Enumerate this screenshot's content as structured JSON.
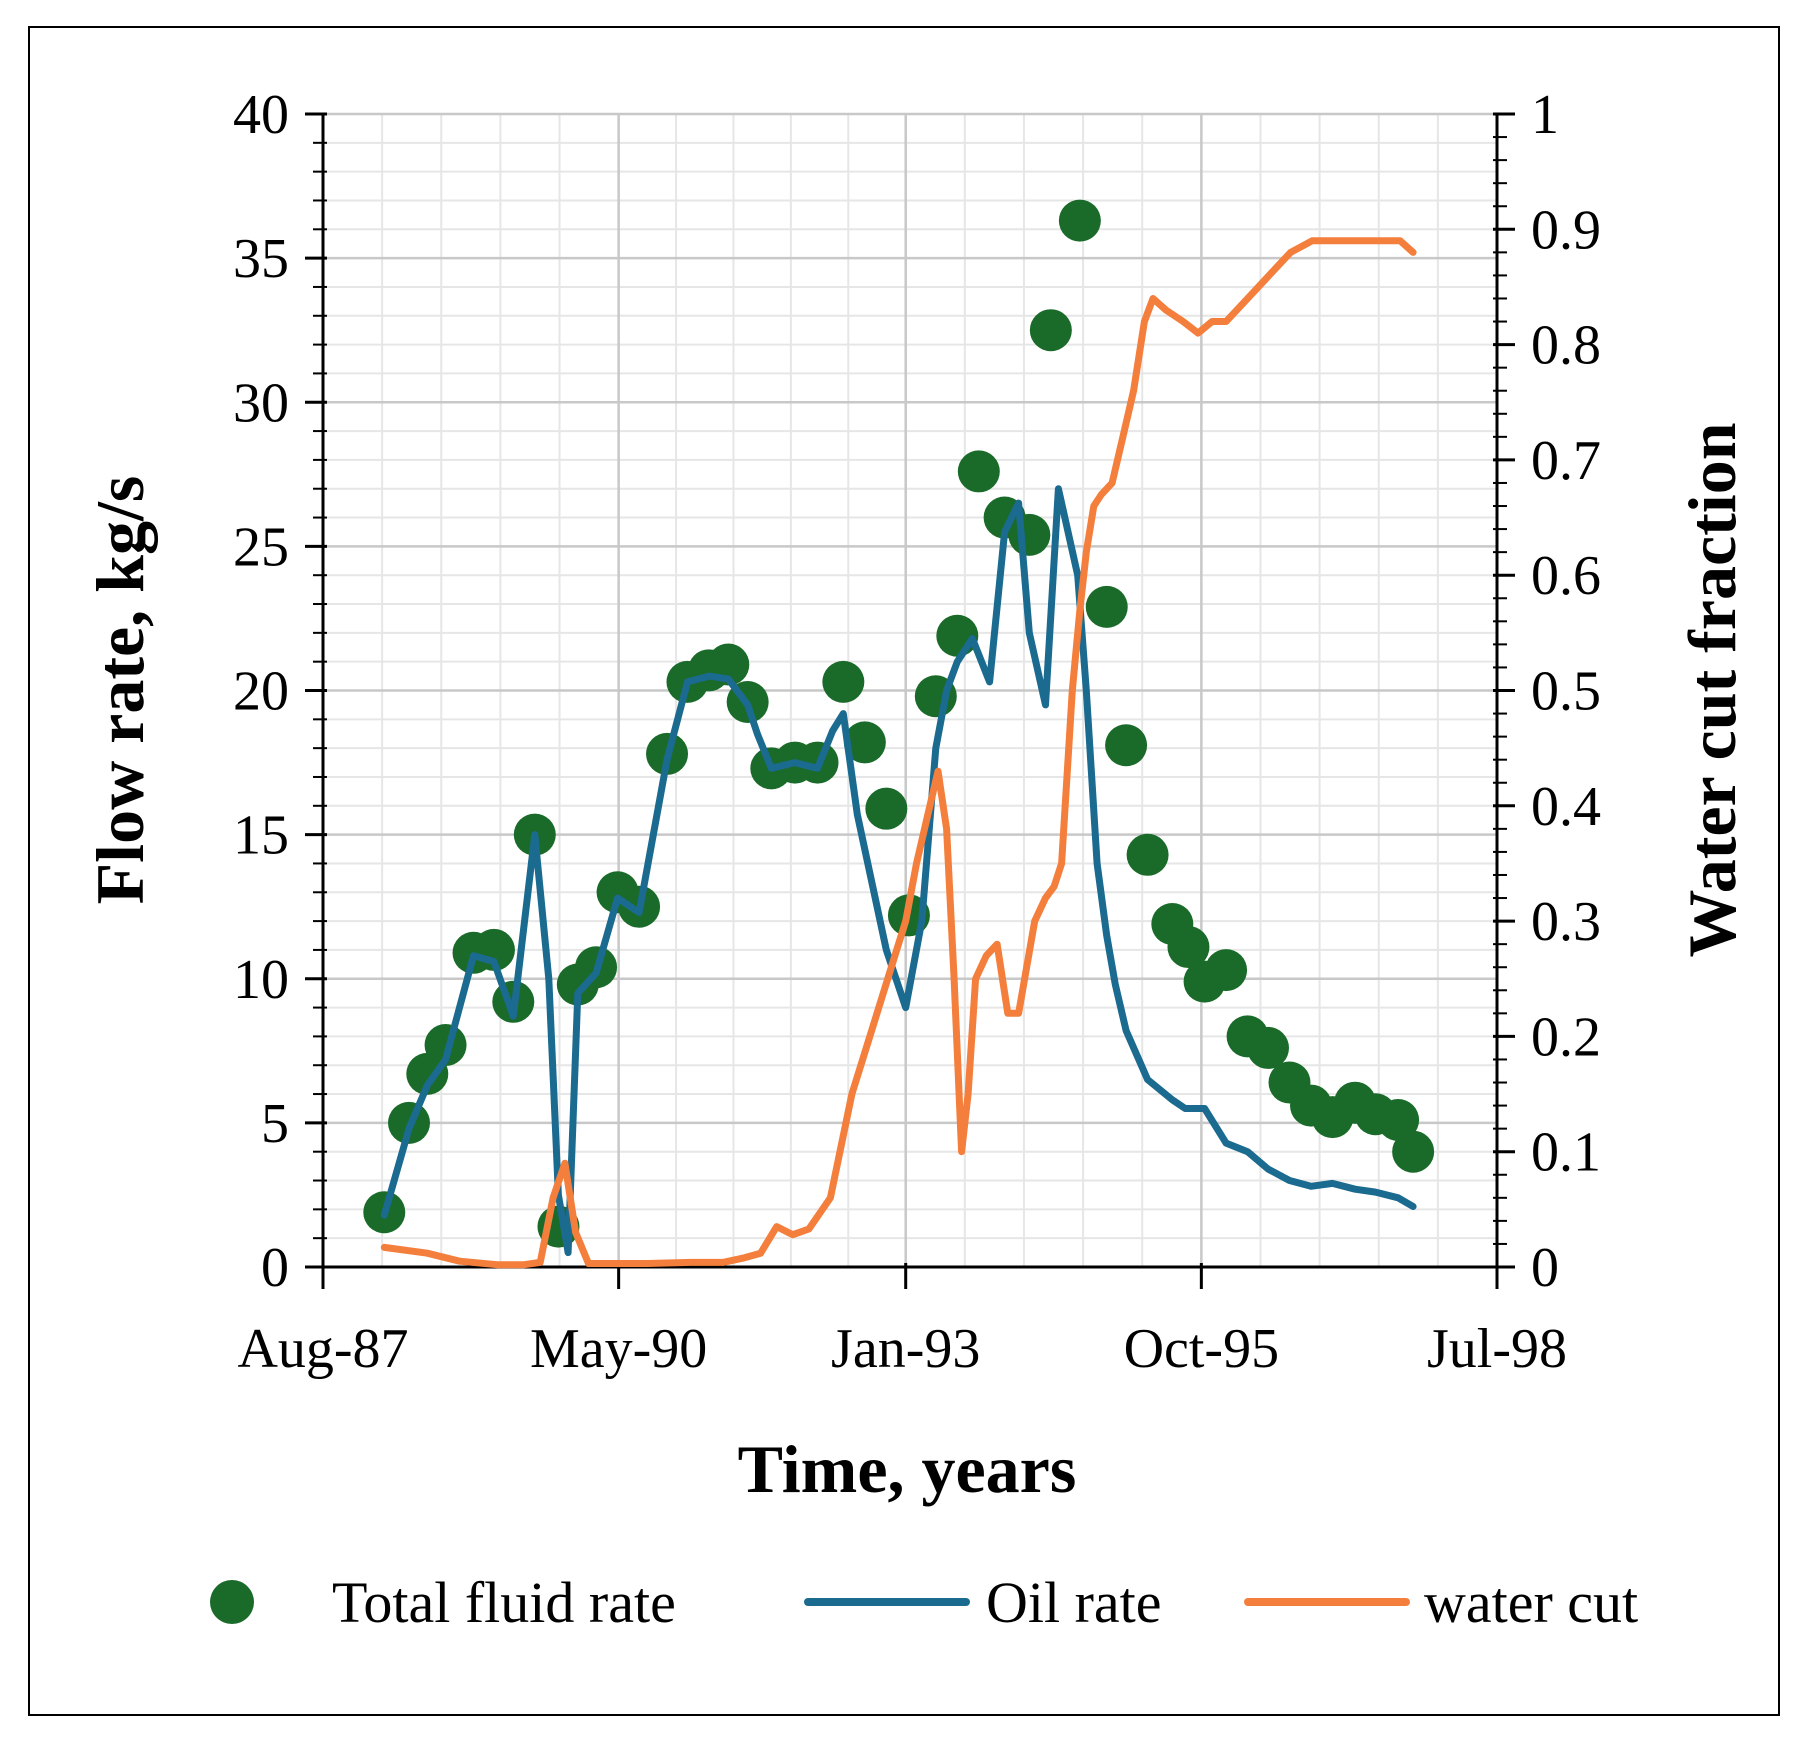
{
  "chart_data": {
    "type": "line",
    "title": "",
    "xlabel": "Time, years",
    "ylabel": "Flow rate, kg/s",
    "y2label": "Water cut fraction",
    "x_ticks": [
      "Aug-87",
      "May-90",
      "Jan-93",
      "Oct-95",
      "Jul-98"
    ],
    "x_tick_years": [
      1987.58,
      1990.33,
      1993.0,
      1995.75,
      1998.5
    ],
    "xlim": [
      1987.58,
      1998.5
    ],
    "ylim": [
      0,
      40
    ],
    "y_ticks": [
      0,
      5,
      10,
      15,
      20,
      25,
      30,
      35,
      40
    ],
    "y2lim": [
      0,
      1
    ],
    "y2_ticks": [
      "0",
      "0.1",
      "0.2",
      "0.3",
      "0.4",
      "0.5",
      "0.6",
      "0.7",
      "0.8",
      "0.9",
      "1"
    ],
    "grid": true,
    "legend_position": "bottom",
    "colors": {
      "total": "#1a6b2a",
      "oil": "#1b6a8f",
      "water": "#f47e3c",
      "grid_major": "#c8c8c8",
      "grid_minor": "#e6e6e6"
    },
    "series": [
      {
        "name": "Total fluid rate",
        "kind": "scatter",
        "axis": "left",
        "x": [
          1988.15,
          1988.38,
          1988.55,
          1988.72,
          1988.98,
          1989.17,
          1989.35,
          1989.55,
          1989.77,
          1989.95,
          1990.12,
          1990.32,
          1990.52,
          1990.78,
          1990.97,
          1991.17,
          1991.35,
          1991.53,
          1991.75,
          1991.97,
          1992.18,
          1992.42,
          1992.62,
          1992.82,
          1993.03,
          1993.28,
          1993.48,
          1993.68,
          1993.92,
          1994.15,
          1994.35,
          1994.62,
          1994.87,
          1995.05,
          1995.25,
          1995.48,
          1995.63,
          1995.78,
          1995.98,
          1996.18,
          1996.37,
          1996.57,
          1996.77,
          1996.97,
          1997.18,
          1997.37,
          1997.58,
          1997.72
        ],
        "y": [
          1.9,
          5.0,
          6.7,
          7.7,
          10.9,
          11.0,
          9.2,
          15.0,
          1.4,
          9.8,
          10.4,
          13.0,
          12.5,
          17.8,
          20.3,
          20.7,
          20.9,
          19.6,
          17.3,
          17.5,
          17.5,
          20.3,
          18.2,
          15.9,
          12.2,
          19.8,
          21.9,
          27.6,
          26.0,
          25.4,
          32.5,
          36.3,
          22.9,
          18.1,
          14.3,
          11.9,
          11.1,
          9.9,
          10.3,
          8.0,
          7.6,
          6.4,
          5.6,
          5.2,
          5.7,
          5.3,
          5.1,
          4.0
        ]
      },
      {
        "name": "Oil rate",
        "kind": "line",
        "axis": "left",
        "x": [
          1988.15,
          1988.38,
          1988.55,
          1988.72,
          1988.85,
          1988.98,
          1989.17,
          1989.35,
          1989.55,
          1989.68,
          1989.77,
          1989.86,
          1989.95,
          1990.12,
          1990.32,
          1990.52,
          1990.78,
          1990.97,
          1991.17,
          1991.35,
          1991.53,
          1991.62,
          1991.75,
          1991.97,
          1992.18,
          1992.32,
          1992.42,
          1992.55,
          1992.82,
          1993.0,
          1993.15,
          1993.28,
          1993.38,
          1993.48,
          1993.62,
          1993.78,
          1993.92,
          1994.05,
          1994.15,
          1994.3,
          1994.42,
          1994.6,
          1994.68,
          1994.78,
          1994.87,
          1994.95,
          1995.05,
          1995.25,
          1995.48,
          1995.6,
          1995.78,
          1995.98,
          1996.18,
          1996.37,
          1996.57,
          1996.77,
          1996.97,
          1997.18,
          1997.37,
          1997.58,
          1997.72
        ],
        "y": [
          1.8,
          4.8,
          6.3,
          7.2,
          9.0,
          10.8,
          10.6,
          8.7,
          15.0,
          10.0,
          2.5,
          0.5,
          9.5,
          10.2,
          12.8,
          12.3,
          17.6,
          20.3,
          20.5,
          20.4,
          19.5,
          18.5,
          17.3,
          17.5,
          17.3,
          18.6,
          19.2,
          15.7,
          11.0,
          9.0,
          12.0,
          18.0,
          20.0,
          21.0,
          21.8,
          20.3,
          25.5,
          26.5,
          22.0,
          19.5,
          27.0,
          24.0,
          20.0,
          14.0,
          11.5,
          9.8,
          8.2,
          6.5,
          5.8,
          5.5,
          5.5,
          4.3,
          4.0,
          3.4,
          3.0,
          2.8,
          2.9,
          2.7,
          2.6,
          2.4,
          2.1
        ]
      },
      {
        "name": "water cut",
        "kind": "line",
        "axis": "right",
        "x": [
          1988.15,
          1988.55,
          1988.85,
          1989.2,
          1989.45,
          1989.6,
          1989.72,
          1989.83,
          1989.93,
          1990.05,
          1990.3,
          1990.6,
          1991.0,
          1991.3,
          1991.5,
          1991.65,
          1991.8,
          1991.95,
          1992.1,
          1992.3,
          1992.5,
          1992.7,
          1992.9,
          1993.0,
          1993.1,
          1993.2,
          1993.3,
          1993.38,
          1993.45,
          1993.52,
          1993.58,
          1993.65,
          1993.75,
          1993.85,
          1993.95,
          1994.05,
          1994.2,
          1994.3,
          1994.38,
          1994.45,
          1994.55,
          1994.62,
          1994.68,
          1994.75,
          1994.82,
          1994.92,
          1995.02,
          1995.12,
          1995.22,
          1995.3,
          1995.42,
          1995.58,
          1995.72,
          1995.85,
          1995.98,
          1996.18,
          1996.38,
          1996.58,
          1996.78,
          1996.98,
          1997.2,
          1997.45,
          1997.6,
          1997.72
        ],
        "y": [
          0.017,
          0.012,
          0.005,
          0.002,
          0.002,
          0.004,
          0.06,
          0.09,
          0.03,
          0.003,
          0.003,
          0.003,
          0.004,
          0.004,
          0.008,
          0.012,
          0.035,
          0.028,
          0.033,
          0.06,
          0.15,
          0.21,
          0.27,
          0.3,
          0.35,
          0.39,
          0.43,
          0.38,
          0.25,
          0.1,
          0.15,
          0.25,
          0.27,
          0.28,
          0.22,
          0.22,
          0.3,
          0.32,
          0.33,
          0.35,
          0.5,
          0.57,
          0.62,
          0.66,
          0.67,
          0.68,
          0.72,
          0.76,
          0.82,
          0.84,
          0.83,
          0.82,
          0.81,
          0.82,
          0.82,
          0.84,
          0.86,
          0.88,
          0.89,
          0.89,
          0.89,
          0.89,
          0.89,
          0.88
        ]
      }
    ]
  }
}
